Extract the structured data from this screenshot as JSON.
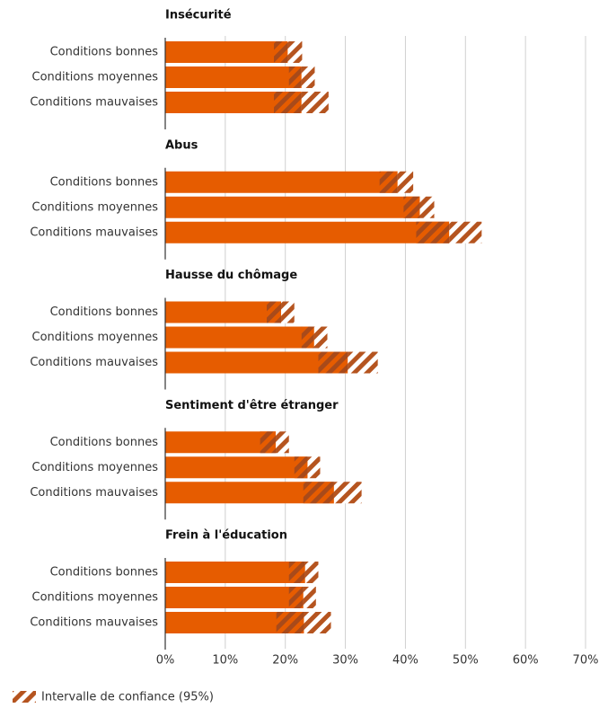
{
  "chart_data": [
    {
      "type": "bar",
      "title": "Insécurité",
      "color": "#e65c00",
      "categories": [
        "Conditions bonnes",
        "Conditions moyennes",
        "Conditions mauvaises"
      ],
      "values": [
        20.4,
        22.7,
        22.7
      ],
      "ci_lower": [
        18.1,
        20.6,
        18.1
      ],
      "ci_upper": [
        22.8,
        24.9,
        27.2
      ]
    },
    {
      "type": "bar",
      "title": "Abus",
      "color": "#e65c00",
      "categories": [
        "Conditions bonnes",
        "Conditions moyennes",
        "Conditions mauvaises"
      ],
      "values": [
        38.7,
        42.4,
        47.3
      ],
      "ci_lower": [
        35.7,
        39.7,
        41.8
      ],
      "ci_upper": [
        41.3,
        44.8,
        52.7
      ]
    },
    {
      "type": "bar",
      "title": "Hausse du chômage",
      "color": "#e65c00",
      "categories": [
        "Conditions bonnes",
        "Conditions moyennes",
        "Conditions mauvaises"
      ],
      "values": [
        19.3,
        24.8,
        30.4
      ],
      "ci_lower": [
        16.9,
        22.7,
        25.5
      ],
      "ci_upper": [
        21.5,
        27.0,
        35.4
      ]
    },
    {
      "type": "bar",
      "title": "Sentiment d'être étranger",
      "color": "#e65c00",
      "categories": [
        "Conditions bonnes",
        "Conditions moyennes",
        "Conditions mauvaises"
      ],
      "values": [
        18.4,
        23.7,
        28.1
      ],
      "ci_lower": [
        15.8,
        21.5,
        23.0
      ],
      "ci_upper": [
        20.6,
        25.8,
        32.7
      ]
    },
    {
      "type": "bar",
      "title": "Frein à l'éducation",
      "color": "#e65c00",
      "categories": [
        "Conditions bonnes",
        "Conditions moyennes",
        "Conditions mauvaises"
      ],
      "values": [
        23.3,
        23.0,
        23.1
      ],
      "ci_lower": [
        20.6,
        20.6,
        18.5
      ],
      "ci_upper": [
        25.5,
        25.1,
        27.6
      ]
    }
  ],
  "x_axis": {
    "xlim": [
      0,
      70
    ],
    "grid": true,
    "xticks": [
      {
        "value": 0,
        "label": "0%"
      },
      {
        "value": 10,
        "label": "10%"
      },
      {
        "value": 20,
        "label": "20%"
      },
      {
        "value": 30,
        "label": "30%"
      },
      {
        "value": 40,
        "label": "40%"
      },
      {
        "value": 50,
        "label": "50%"
      },
      {
        "value": 60,
        "label": "60%"
      },
      {
        "value": 70,
        "label": "70%"
      }
    ]
  },
  "legend": {
    "label": "Intervalle de confiance (95%)",
    "color": "#b5541f"
  }
}
